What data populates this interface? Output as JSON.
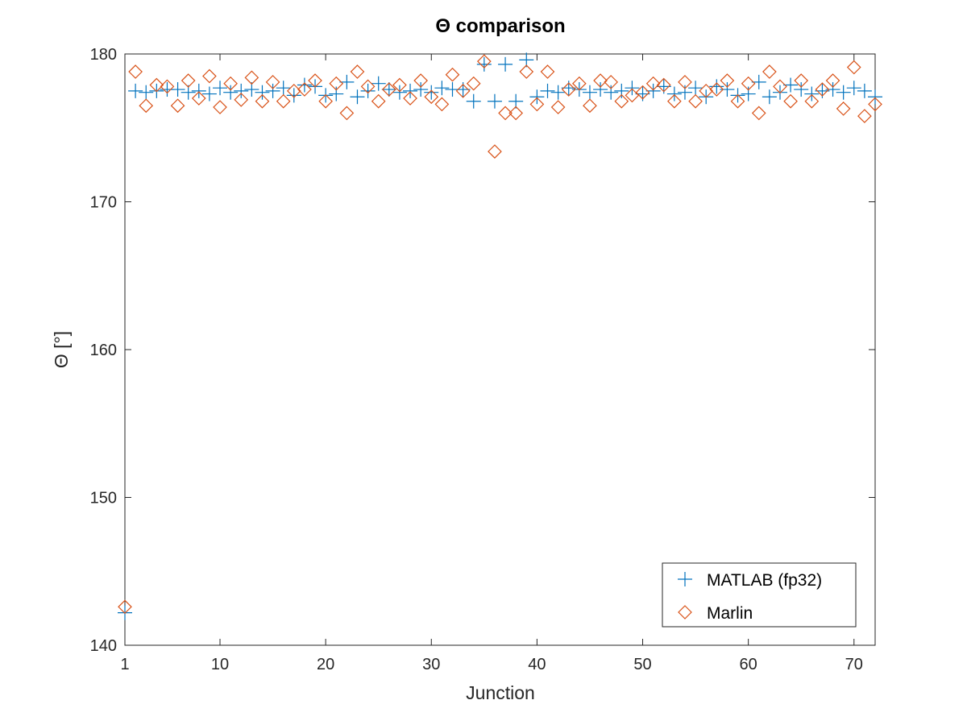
{
  "chart_data": {
    "type": "scatter",
    "title": "Θ comparison",
    "xlabel": "Junction",
    "ylabel": "Θ [°]",
    "xlim": [
      1,
      72
    ],
    "ylim": [
      140,
      180
    ],
    "xticks": [
      1,
      10,
      20,
      30,
      40,
      50,
      60,
      70
    ],
    "yticks": [
      140,
      150,
      160,
      170,
      180
    ],
    "grid": false,
    "legend_position": "bottom-right",
    "series": [
      {
        "name": "MATLAB (fp32)",
        "marker": "plus",
        "color": "#0072BD",
        "x": [
          1,
          2,
          3,
          4,
          5,
          6,
          7,
          8,
          9,
          10,
          11,
          12,
          13,
          14,
          15,
          16,
          17,
          18,
          19,
          20,
          21,
          22,
          23,
          24,
          25,
          26,
          27,
          28,
          29,
          30,
          31,
          32,
          33,
          34,
          35,
          36,
          37,
          38,
          39,
          40,
          41,
          42,
          43,
          44,
          45,
          46,
          47,
          48,
          49,
          50,
          51,
          52,
          53,
          54,
          55,
          56,
          57,
          58,
          59,
          60,
          61,
          62,
          63,
          64,
          65,
          66,
          67,
          68,
          69,
          70,
          71,
          72
        ],
        "y": [
          142.2,
          177.5,
          177.4,
          177.5,
          177.6,
          177.6,
          177.4,
          177.5,
          177.3,
          177.7,
          177.4,
          177.5,
          177.6,
          177.4,
          177.5,
          177.7,
          177.2,
          177.9,
          177.8,
          177.2,
          177.3,
          178.1,
          177.1,
          177.5,
          178.0,
          177.6,
          177.4,
          177.5,
          177.6,
          177.4,
          177.7,
          177.6,
          177.6,
          176.8,
          179.3,
          176.8,
          179.3,
          176.8,
          179.6,
          177.1,
          177.5,
          177.4,
          177.7,
          177.6,
          177.4,
          177.6,
          177.4,
          177.5,
          177.7,
          177.3,
          177.5,
          177.8,
          177.3,
          177.4,
          177.7,
          177.1,
          177.8,
          177.6,
          177.2,
          177.3,
          178.1,
          177.1,
          177.4,
          177.9,
          177.6,
          177.3,
          177.5,
          177.6,
          177.4,
          177.7,
          177.5,
          177.1
        ]
      },
      {
        "name": "Marlin",
        "marker": "diamond",
        "color": "#D95319",
        "x": [
          1,
          2,
          3,
          4,
          5,
          6,
          7,
          8,
          9,
          10,
          11,
          12,
          13,
          14,
          15,
          16,
          17,
          18,
          19,
          20,
          21,
          22,
          23,
          24,
          25,
          26,
          27,
          28,
          29,
          30,
          31,
          32,
          33,
          34,
          35,
          36,
          37,
          38,
          39,
          40,
          41,
          42,
          43,
          44,
          45,
          46,
          47,
          48,
          49,
          50,
          51,
          52,
          53,
          54,
          55,
          56,
          57,
          58,
          59,
          60,
          61,
          62,
          63,
          64,
          65,
          66,
          67,
          68,
          69,
          70,
          71,
          72
        ],
        "y": [
          142.6,
          178.8,
          176.5,
          177.9,
          177.8,
          176.5,
          178.2,
          177.0,
          178.5,
          176.4,
          178.0,
          176.9,
          178.4,
          176.8,
          178.1,
          176.8,
          177.5,
          177.6,
          178.2,
          176.8,
          178.0,
          176.0,
          178.8,
          177.8,
          176.8,
          177.6,
          177.9,
          177.0,
          178.2,
          177.1,
          176.6,
          178.6,
          177.5,
          178.0,
          179.5,
          173.4,
          176.0,
          176.0,
          178.8,
          176.6,
          178.8,
          176.4,
          177.6,
          178.0,
          176.5,
          178.2,
          178.1,
          176.8,
          177.2,
          177.4,
          178.0,
          177.9,
          176.8,
          178.1,
          176.8,
          177.5,
          177.6,
          178.2,
          176.8,
          178.0,
          176.0,
          178.8,
          177.8,
          176.8,
          178.2,
          176.8,
          177.6,
          178.2,
          176.3,
          179.1,
          175.8,
          176.6
        ]
      }
    ]
  }
}
